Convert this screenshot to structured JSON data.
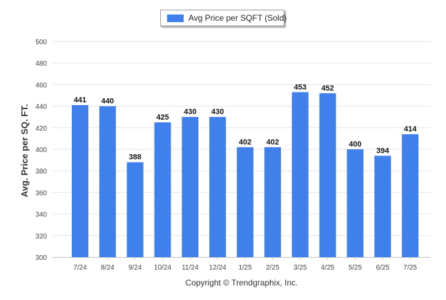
{
  "chart_data": {
    "type": "bar",
    "categories": [
      "7/24",
      "8/24",
      "9/24",
      "10/24",
      "11/24",
      "12/24",
      "1/25",
      "2/25",
      "3/25",
      "4/25",
      "5/25",
      "6/25",
      "7/25"
    ],
    "series": [
      {
        "name": "Avg Price per SQFT (Sold)",
        "values": [
          441,
          440,
          388,
          425,
          430,
          430,
          402,
          402,
          453,
          452,
          400,
          394,
          414
        ]
      }
    ],
    "ylabel": "Avg. Price per SQ. FT.",
    "xlabel": "",
    "ylim": [
      300,
      500
    ],
    "yticks": [
      300,
      320,
      340,
      360,
      380,
      400,
      420,
      440,
      460,
      480,
      500
    ],
    "grid": true,
    "legend_position": "top-center",
    "data_labels": true,
    "bar_color": "#3f80ea"
  },
  "footer": {
    "copyright": "Copyright © Trendgraphix, Inc."
  }
}
